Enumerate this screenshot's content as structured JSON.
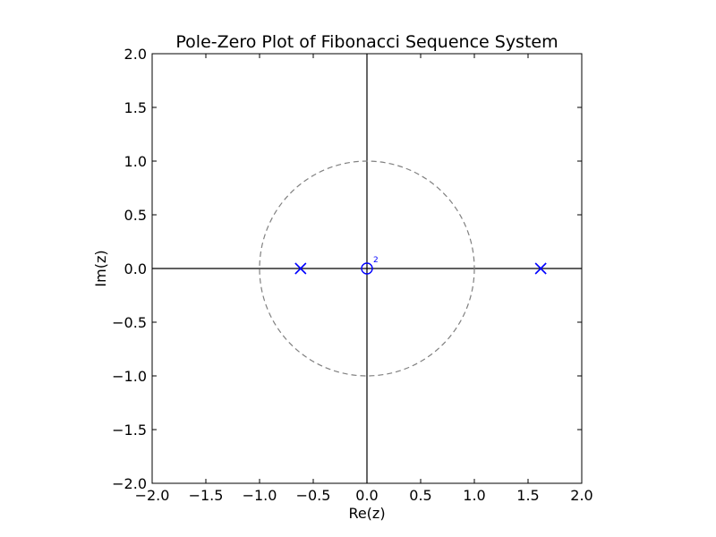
{
  "chart_data": {
    "type": "scatter",
    "title": "Pole-Zero Plot of Fibonacci Sequence System",
    "xlabel": "Re(z)",
    "ylabel": "Im(z)",
    "xlim": [
      -2.0,
      2.0
    ],
    "ylim": [
      -2.0,
      2.0
    ],
    "xticks": [
      "−2.0",
      "−1.5",
      "−1.0",
      "−0.5",
      "0.0",
      "0.5",
      "1.0",
      "1.5",
      "2.0"
    ],
    "yticks": [
      "−2.0",
      "−1.5",
      "−1.0",
      "−0.5",
      "0.0",
      "0.5",
      "1.0",
      "1.5",
      "2.0"
    ],
    "grid": false,
    "unit_circle": {
      "radius": 1.0,
      "style": "dashed",
      "color": "#808080"
    },
    "series": [
      {
        "marker": "x",
        "color": "#0000ff",
        "points": [
          {
            "x": -0.618,
            "y": 0.0
          },
          {
            "x": 1.618,
            "y": 0.0
          }
        ]
      },
      {
        "marker": "o",
        "color": "#0000ff",
        "points": [
          {
            "x": 0.0,
            "y": 0.0,
            "multiplicity": "2"
          }
        ]
      }
    ]
  }
}
